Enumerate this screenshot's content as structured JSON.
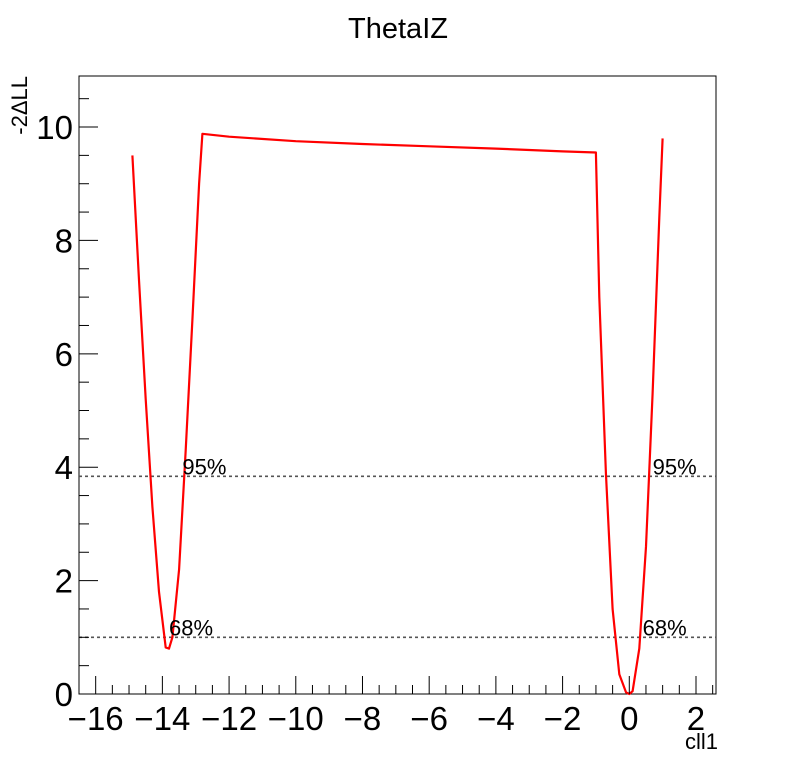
{
  "chart_data": {
    "type": "line",
    "title": "ThetaIZ",
    "xlabel": "cll1",
    "ylabel": "-2ΔLL",
    "xlim": [
      -16.5,
      2.6
    ],
    "ylim": [
      0,
      10.9
    ],
    "grid": false,
    "legend": "none",
    "x_ticks": [
      -16,
      -14,
      -12,
      -10,
      -8,
      -6,
      -4,
      -2,
      0,
      2
    ],
    "x_tick_labels": [
      "−16",
      "−14",
      "−12",
      "−10",
      "−8",
      "−6",
      "−4",
      "−2",
      "0",
      "2"
    ],
    "y_ticks": [
      0,
      2,
      4,
      6,
      8,
      10
    ],
    "y_tick_labels": [
      "0",
      "2",
      "4",
      "6",
      "8",
      "10"
    ],
    "series": [
      {
        "color": "#ff0000",
        "x": [
          -14.9,
          -14.7,
          -14.5,
          -14.3,
          -14.1,
          -13.9,
          -13.8,
          -13.7,
          -13.5,
          -13.3,
          -13.1,
          -12.9,
          -12.8,
          -12.0,
          -10.0,
          -8.0,
          -6.0,
          -4.0,
          -2.0,
          -1.0,
          -0.9,
          -0.7,
          -0.5,
          -0.3,
          -0.1,
          0.0,
          0.1,
          0.3,
          0.5,
          0.7,
          0.9,
          1.0
        ],
        "y": [
          9.5,
          7.3,
          5.2,
          3.3,
          1.8,
          0.82,
          0.8,
          1.0,
          2.2,
          4.3,
          6.6,
          9.0,
          9.88,
          9.83,
          9.75,
          9.7,
          9.66,
          9.62,
          9.57,
          9.55,
          7.0,
          3.9,
          1.5,
          0.35,
          0.03,
          0.0,
          0.05,
          0.8,
          2.6,
          5.3,
          8.4,
          9.8
        ]
      }
    ],
    "reference_lines": [
      {
        "y": 3.84,
        "label_left": "95%",
        "label_right": "95%",
        "color": "#555555"
      },
      {
        "y": 1.0,
        "label_left": "68%",
        "label_right": "68%",
        "color": "#555555"
      }
    ]
  }
}
